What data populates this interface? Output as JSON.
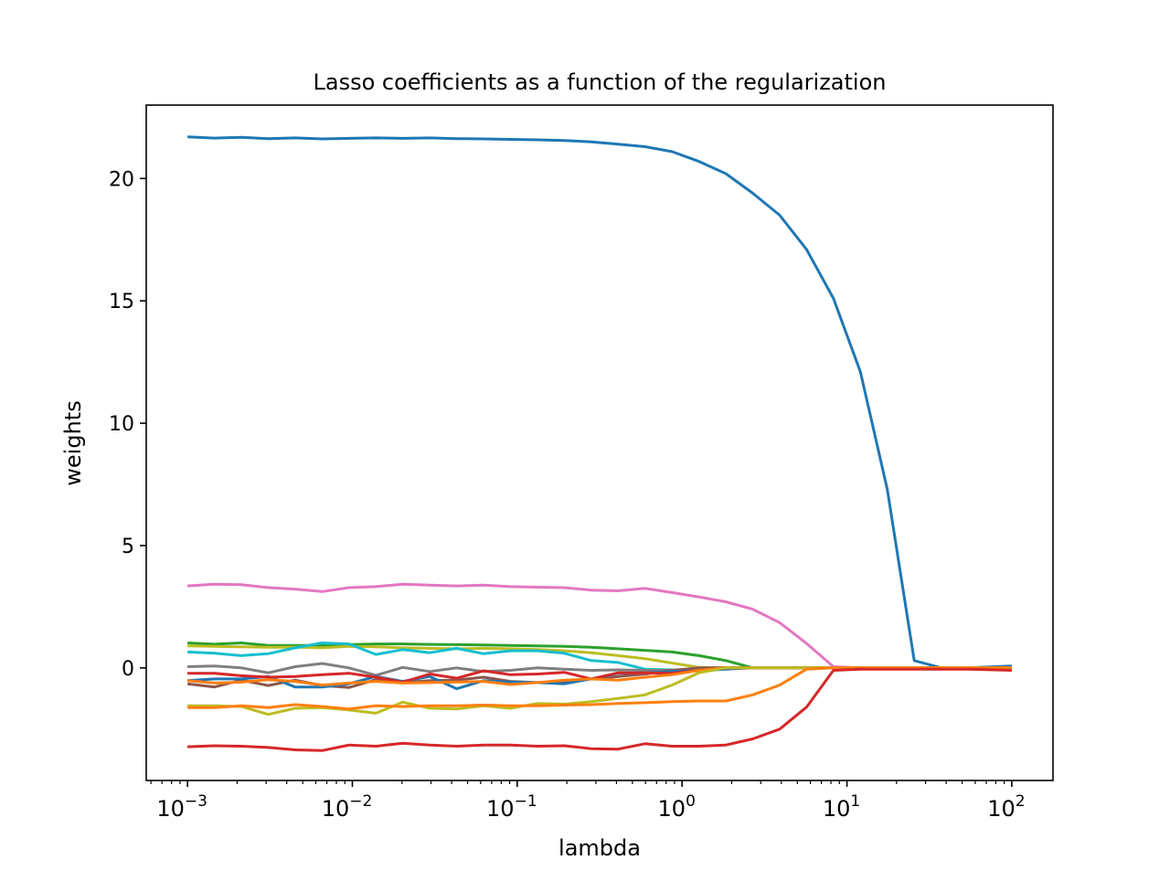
{
  "chart_data": {
    "type": "line",
    "title": "Lasso coefficients as a function of the regularization",
    "xlabel": "lambda",
    "ylabel": "weights",
    "xscale": "log",
    "xlim": [
      0.000562,
      177.8
    ],
    "ylim": [
      -4.6,
      23.0
    ],
    "grid": false,
    "legend": "none",
    "x_ticks": [
      {
        "value": 0.001,
        "base": "10",
        "exp": "−3"
      },
      {
        "value": 0.01,
        "base": "10",
        "exp": "−2"
      },
      {
        "value": 0.1,
        "base": "10",
        "exp": "−1"
      },
      {
        "value": 1,
        "base": "10",
        "exp": "0"
      },
      {
        "value": 10,
        "base": "10",
        "exp": "1"
      },
      {
        "value": 100,
        "base": "10",
        "exp": "2"
      }
    ],
    "y_ticks": [
      {
        "value": 0,
        "label": "0"
      },
      {
        "value": 5,
        "label": "5"
      },
      {
        "value": 10,
        "label": "10"
      },
      {
        "value": 15,
        "label": "15"
      },
      {
        "value": 20,
        "label": "20"
      }
    ],
    "x": [
      0.001,
      0.00146,
      0.00212,
      0.00309,
      0.0045,
      0.00655,
      0.00954,
      0.0139,
      0.0202,
      0.0295,
      0.0429,
      0.0625,
      0.091,
      0.133,
      0.193,
      0.281,
      0.409,
      0.596,
      0.869,
      1.265,
      1.842,
      2.683,
      3.907,
      5.69,
      8.286,
      12.07,
      17.57,
      25.6,
      37.28,
      54.29,
      79.06,
      100
    ],
    "series": [
      {
        "color": "#1f77b4",
        "values": [
          21.7,
          21.65,
          21.68,
          21.63,
          21.66,
          21.62,
          21.64,
          21.66,
          21.64,
          21.66,
          21.63,
          21.62,
          21.6,
          21.58,
          21.55,
          21.5,
          21.4,
          21.3,
          21.1,
          20.7,
          20.2,
          19.4,
          18.5,
          17.1,
          15.1,
          12.1,
          7.3,
          0.3,
          0.0,
          0.0,
          0.05,
          0.08
        ]
      },
      {
        "color": "#e377c2",
        "values": [
          3.35,
          3.42,
          3.4,
          3.28,
          3.22,
          3.12,
          3.28,
          3.32,
          3.42,
          3.38,
          3.35,
          3.38,
          3.32,
          3.3,
          3.28,
          3.18,
          3.15,
          3.25,
          3.08,
          2.9,
          2.7,
          2.4,
          1.85,
          1.0,
          0.05,
          0.0,
          0.0,
          0.0,
          0.0,
          0.0,
          0.0,
          0.0
        ]
      },
      {
        "color": "#2ca02c",
        "values": [
          1.02,
          0.97,
          1.02,
          0.92,
          0.92,
          0.92,
          0.95,
          0.98,
          0.98,
          0.96,
          0.95,
          0.94,
          0.92,
          0.9,
          0.88,
          0.84,
          0.78,
          0.72,
          0.65,
          0.5,
          0.3,
          0.0,
          0.0,
          0.0,
          0.0,
          0.0,
          0.0,
          0.0,
          0.0,
          0.0,
          0.0,
          0.0
        ]
      },
      {
        "color": "#bcbd22",
        "values": [
          0.9,
          0.88,
          0.86,
          0.84,
          0.85,
          0.82,
          0.88,
          0.86,
          0.82,
          0.8,
          0.78,
          0.8,
          0.78,
          0.75,
          0.7,
          0.62,
          0.5,
          0.38,
          0.2,
          0.02,
          0.0,
          0.0,
          0.0,
          0.0,
          0.0,
          0.0,
          0.0,
          0.0,
          0.0,
          0.0,
          0.0,
          0.0
        ]
      },
      {
        "color": "#17becf",
        "values": [
          0.65,
          0.6,
          0.5,
          0.58,
          0.82,
          1.02,
          0.98,
          0.55,
          0.75,
          0.62,
          0.8,
          0.58,
          0.7,
          0.7,
          0.6,
          0.3,
          0.22,
          -0.05,
          -0.08,
          -0.1,
          0.0,
          0.0,
          0.0,
          0.0,
          0.0,
          0.0,
          0.0,
          0.0,
          0.0,
          0.0,
          0.0,
          0.0
        ]
      },
      {
        "color": "#7f7f7f",
        "values": [
          0.05,
          0.08,
          0.0,
          -0.2,
          0.05,
          0.18,
          0.0,
          -0.3,
          0.02,
          -0.15,
          0.0,
          -0.15,
          -0.1,
          0.0,
          -0.05,
          -0.1,
          -0.08,
          -0.1,
          -0.1,
          -0.05,
          0.0,
          0.0,
          0.0,
          0.0,
          0.0,
          0.0,
          0.0,
          0.0,
          0.0,
          0.0,
          0.0,
          0.0
        ]
      },
      {
        "color": "#8c564b",
        "values": [
          -0.65,
          -0.78,
          -0.5,
          -0.72,
          -0.5,
          -0.72,
          -0.8,
          -0.48,
          -0.6,
          -0.52,
          -0.5,
          -0.38,
          -0.55,
          -0.6,
          -0.55,
          -0.45,
          -0.35,
          -0.25,
          -0.1,
          0.0,
          0.0,
          0.0,
          0.0,
          0.0,
          0.0,
          0.0,
          0.0,
          0.0,
          0.0,
          0.0,
          0.0,
          0.0
        ]
      },
      {
        "color": "#1f77b4",
        "values": [
          -0.52,
          -0.45,
          -0.45,
          -0.35,
          -0.78,
          -0.78,
          -0.65,
          -0.35,
          -0.55,
          -0.35,
          -0.85,
          -0.52,
          -0.58,
          -0.6,
          -0.65,
          -0.45,
          -0.22,
          -0.2,
          -0.15,
          -0.12,
          -0.05,
          0.0,
          0.0,
          0.0,
          0.0,
          0.0,
          0.0,
          0.0,
          0.0,
          0.0,
          0.0,
          0.0
        ]
      },
      {
        "color": "#d62728",
        "values": [
          -0.22,
          -0.22,
          -0.32,
          -0.38,
          -0.35,
          -0.28,
          -0.22,
          -0.38,
          -0.58,
          -0.25,
          -0.42,
          -0.12,
          -0.28,
          -0.25,
          -0.18,
          -0.45,
          -0.2,
          -0.2,
          -0.22,
          -0.1,
          0.0,
          0.0,
          0.0,
          0.0,
          0.0,
          0.0,
          0.0,
          0.0,
          0.0,
          0.0,
          0.0,
          0.0
        ]
      },
      {
        "color": "#ff7f0e",
        "values": [
          -0.52,
          -0.62,
          -0.58,
          -0.48,
          -0.55,
          -0.7,
          -0.62,
          -0.55,
          -0.62,
          -0.6,
          -0.58,
          -0.55,
          -0.68,
          -0.6,
          -0.5,
          -0.45,
          -0.5,
          -0.38,
          -0.28,
          -0.1,
          0.0,
          0.0,
          0.0,
          0.0,
          0.0,
          0.0,
          0.0,
          0.0,
          0.0,
          0.0,
          0.0,
          0.0
        ]
      },
      {
        "color": "#bcbd22",
        "values": [
          -1.55,
          -1.55,
          -1.58,
          -1.9,
          -1.65,
          -1.62,
          -1.72,
          -1.85,
          -1.4,
          -1.65,
          -1.68,
          -1.55,
          -1.65,
          -1.45,
          -1.48,
          -1.38,
          -1.25,
          -1.1,
          -0.7,
          -0.2,
          0.0,
          0.0,
          0.0,
          0.0,
          0.0,
          0.0,
          0.0,
          0.0,
          0.0,
          0.0,
          0.0,
          0.0
        ]
      },
      {
        "color": "#ff7f0e",
        "values": [
          -1.62,
          -1.62,
          -1.55,
          -1.62,
          -1.5,
          -1.58,
          -1.68,
          -1.55,
          -1.58,
          -1.55,
          -1.55,
          -1.52,
          -1.55,
          -1.55,
          -1.52,
          -1.5,
          -1.45,
          -1.42,
          -1.38,
          -1.35,
          -1.35,
          -1.1,
          -0.7,
          -0.05,
          0.0,
          0.0,
          0.0,
          0.0,
          0.0,
          0.0,
          0.0,
          0.0
        ]
      },
      {
        "color": "#d62728",
        "values": [
          -3.22,
          -3.18,
          -3.2,
          -3.25,
          -3.35,
          -3.38,
          -3.15,
          -3.2,
          -3.08,
          -3.15,
          -3.2,
          -3.15,
          -3.15,
          -3.2,
          -3.18,
          -3.3,
          -3.32,
          -3.1,
          -3.2,
          -3.2,
          -3.15,
          -2.9,
          -2.5,
          -1.6,
          -0.1,
          -0.05,
          -0.05,
          -0.05,
          -0.05,
          -0.05,
          -0.08,
          -0.1
        ]
      }
    ]
  }
}
